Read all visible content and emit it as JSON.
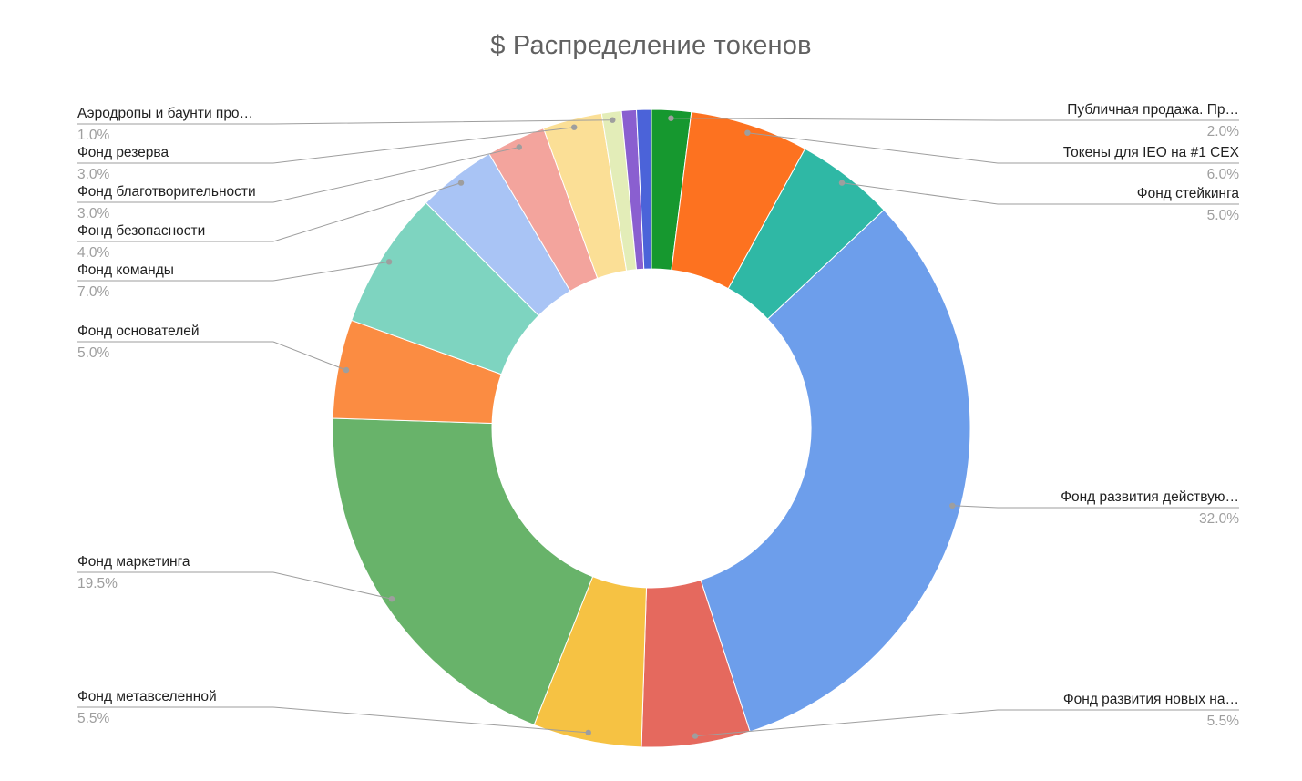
{
  "chart_data": {
    "type": "pie",
    "subtype": "donut",
    "title": "$ Распределение токенов",
    "unit": "%",
    "legend_position": "none",
    "label_style": "callout",
    "slices": [
      {
        "label": "Публичная продажа. Пр…",
        "value": 2.0,
        "value_label": "2.0%",
        "color": "#16982f"
      },
      {
        "label": "Токены для IEO на #1 CEX",
        "value": 6.0,
        "value_label": "6.0%",
        "color": "#fd7220"
      },
      {
        "label": "Фонд стейкинга",
        "value": 5.0,
        "value_label": "5.0%",
        "color": "#2fb8a5"
      },
      {
        "label": "Фонд развития действую…",
        "value": 32.0,
        "value_label": "32.0%",
        "color": "#6d9eeb"
      },
      {
        "label": "Фонд развития новых на…",
        "value": 5.5,
        "value_label": "5.5%",
        "color": "#e5695e"
      },
      {
        "label": "Фонд метавселенной",
        "value": 5.5,
        "value_label": "5.5%",
        "color": "#f6c243"
      },
      {
        "label": "Фонд маркетинга",
        "value": 19.5,
        "value_label": "19.5%",
        "color": "#68b36a"
      },
      {
        "label": "Фонд основателей",
        "value": 5.0,
        "value_label": "5.0%",
        "color": "#fb8c42"
      },
      {
        "label": "Фонд команды",
        "value": 7.0,
        "value_label": "7.0%",
        "color": "#7ed4c0"
      },
      {
        "label": "Фонд безопасности",
        "value": 4.0,
        "value_label": "4.0%",
        "color": "#a9c4f5"
      },
      {
        "label": "Фонд благотворительности",
        "value": 3.0,
        "value_label": "3.0%",
        "color": "#f3a49d"
      },
      {
        "label": "Фонд резерва",
        "value": 3.0,
        "value_label": "3.0%",
        "color": "#fbdf96"
      },
      {
        "label": "Аэродропы и баунти про…",
        "value": 1.0,
        "value_label": "1.0%",
        "color": "#e3edb8"
      },
      {
        "label": "",
        "value": 0.75,
        "value_label": "",
        "color": "#8a5fd0"
      },
      {
        "label": "",
        "value": 0.75,
        "value_label": "",
        "color": "#4b63d9"
      }
    ],
    "colors": {
      "title_text": "#616161",
      "label_text": "#212121",
      "value_text": "#9e9e9e",
      "leader_line": "#9e9e9e",
      "slice_border": "#ffffff",
      "background": "#ffffff"
    }
  }
}
